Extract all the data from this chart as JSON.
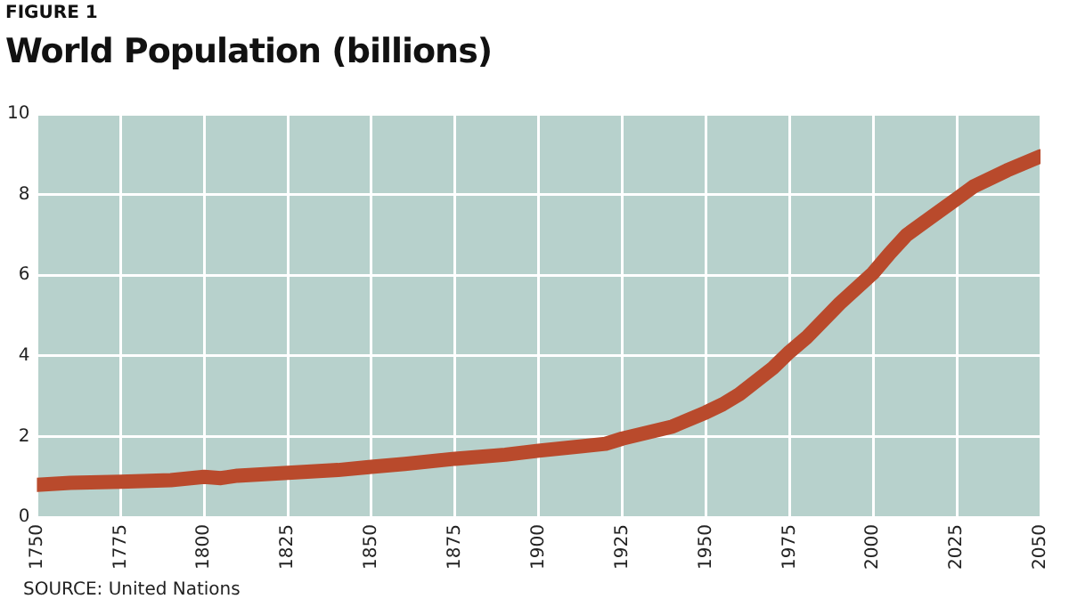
{
  "chart_data": {
    "type": "line",
    "title": "World Population (billions)",
    "annotations": [
      "FIGURE 1",
      "SOURCE:  United Nations"
    ],
    "x": [
      1750,
      1760,
      1775,
      1790,
      1800,
      1805,
      1810,
      1825,
      1840,
      1850,
      1860,
      1875,
      1890,
      1900,
      1920,
      1925,
      1930,
      1940,
      1950,
      1955,
      1960,
      1970,
      1975,
      1980,
      1990,
      2000,
      2005,
      2010,
      2020,
      2025,
      2030,
      2040,
      2050
    ],
    "series": [
      {
        "color": "#b94a2c",
        "values": [
          0.8,
          0.85,
          0.88,
          0.92,
          1.0,
          0.97,
          1.03,
          1.1,
          1.17,
          1.25,
          1.32,
          1.45,
          1.55,
          1.65,
          1.82,
          1.95,
          2.05,
          2.25,
          2.6,
          2.8,
          3.05,
          3.7,
          4.1,
          4.45,
          5.3,
          6.06,
          6.55,
          7.0,
          7.6,
          7.9,
          8.2,
          8.6,
          8.95
        ]
      }
    ],
    "xlim": [
      1750,
      2050
    ],
    "xticks": [
      1750,
      1775,
      1800,
      1825,
      1850,
      1875,
      1900,
      1925,
      1950,
      1975,
      2000,
      2025,
      2050
    ],
    "ylim": [
      0,
      10
    ],
    "yticks": [
      0,
      2,
      4,
      6,
      8,
      10
    ],
    "grid": true,
    "legend": false,
    "marker": "none",
    "line_style": "solid"
  }
}
